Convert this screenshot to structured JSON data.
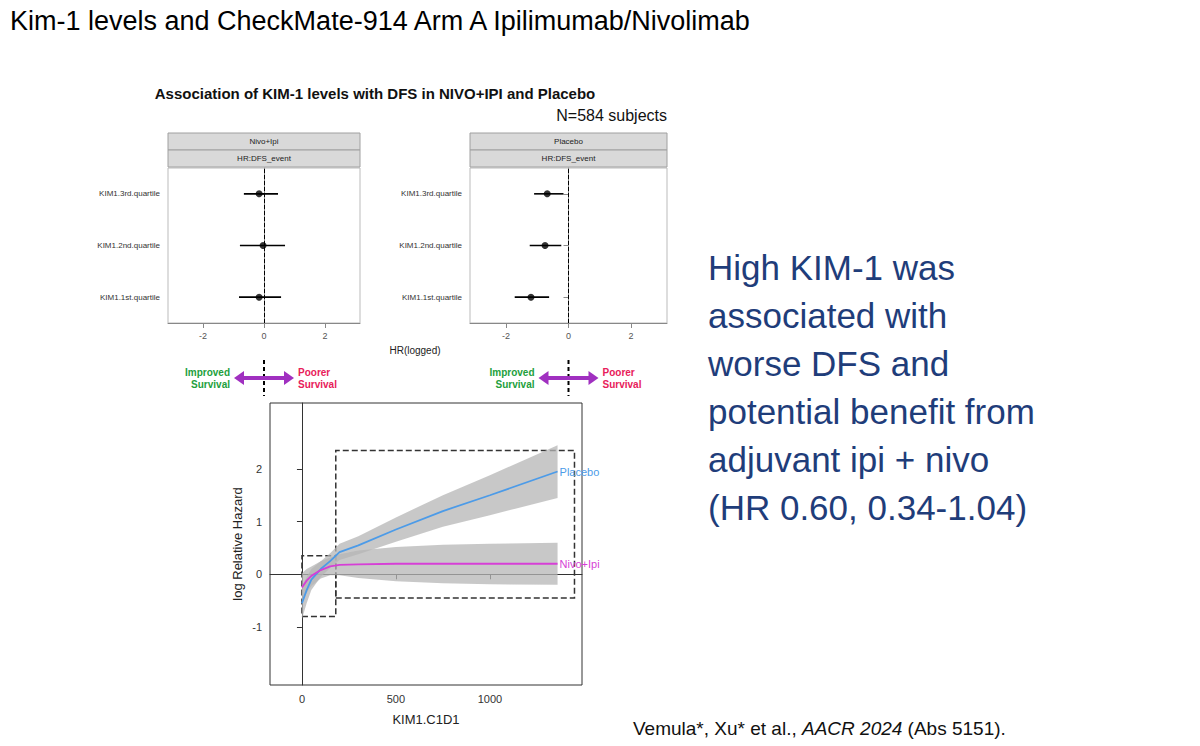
{
  "page": {
    "title": "Kim-1 levels and CheckMate-914 Arm A Ipilimumab/Nivolimab",
    "statement": [
      "High KIM-1 was",
      "associated with",
      "worse DFS and",
      "potential benefit from",
      "adjuvant ipi + nivo",
      "(HR 0.60, 0.34-1.04)"
    ],
    "citation": [
      {
        "text": "Vemula*, Xu* et al., ",
        "italic": false
      },
      {
        "text": "AACR 2024",
        "italic": true
      },
      {
        "text": " (Abs 5151).",
        "italic": false
      }
    ]
  },
  "chart_data": [
    {
      "type": "forest",
      "title": "Association of KIM-1 levels with DFS in NIVO+IPI and Placebo",
      "subtitle": "N=584 subjects",
      "panel_title": "Nivo+Ipi",
      "strip": "HR:DFS_event",
      "xlabel": "HR(logged)",
      "categories": [
        "KIM1.1st.quartile",
        "KIM1.2nd.quartile",
        "KIM1.3rd.quartile"
      ],
      "values": [
        -0.16,
        -0.03,
        -0.16
      ],
      "lower": [
        -0.82,
        -0.79,
        -0.66
      ],
      "upper": [
        0.56,
        0.69,
        0.46
      ],
      "xlim": [
        -3.15,
        3.15
      ],
      "xticks": [
        -2,
        0,
        2
      ],
      "ref_line": 0,
      "color": "#000000",
      "grid": false,
      "annotations": [
        {
          "text": "Improved Survival",
          "color": "#22a03c"
        },
        {
          "text": "Poorer Survival",
          "color": "#e8205a"
        }
      ]
    },
    {
      "type": "forest",
      "panel_title": "Placebo",
      "strip": "HR:DFS_event",
      "categories": [
        "KIM1.1st.quartile",
        "KIM1.2nd.quartile",
        "KIM1.3rd.quartile"
      ],
      "values": [
        -1.2,
        -0.75,
        -0.68
      ],
      "lower": [
        -1.72,
        -1.24,
        -1.1
      ],
      "upper": [
        -0.62,
        -0.23,
        -0.16
      ],
      "xlim": [
        -3.15,
        3.15
      ],
      "xticks": [
        -2,
        0,
        2
      ],
      "ref_line": 0,
      "color": "#000000",
      "grid": false,
      "annotations": [
        {
          "text": "Improved Survival",
          "color": "#22a03c"
        },
        {
          "text": "Poorer Survival",
          "color": "#e8205a"
        }
      ]
    },
    {
      "type": "line",
      "xlabel": "KIM1.C1D1",
      "ylabel": "log Relative Hazard",
      "x": [
        0,
        25,
        50,
        100,
        150,
        200,
        300,
        500,
        750,
        1000,
        1360
      ],
      "series": [
        {
          "name": "Placebo",
          "color": "#4c9be8",
          "values": [
            -0.55,
            -0.3,
            -0.1,
            0.1,
            0.25,
            0.42,
            0.55,
            0.85,
            1.2,
            1.5,
            1.95
          ],
          "lower": [
            -0.85,
            -0.55,
            -0.3,
            -0.05,
            0.12,
            0.27,
            0.38,
            0.62,
            0.9,
            1.12,
            1.45
          ],
          "upper": [
            -0.22,
            -0.05,
            0.1,
            0.25,
            0.4,
            0.58,
            0.72,
            1.08,
            1.5,
            1.88,
            2.45
          ]
        },
        {
          "name": "Nivo+Ipi",
          "color": "#d63fd6",
          "values": [
            -0.25,
            -0.12,
            -0.03,
            0.08,
            0.15,
            0.18,
            0.19,
            0.2,
            0.2,
            0.2,
            0.2
          ],
          "lower": [
            -0.5,
            -0.35,
            -0.22,
            -0.08,
            -0.02,
            -0.02,
            -0.07,
            -0.13,
            -0.17,
            -0.19,
            -0.2
          ],
          "upper": [
            0.02,
            0.1,
            0.15,
            0.25,
            0.32,
            0.38,
            0.45,
            0.52,
            0.56,
            0.58,
            0.6
          ]
        }
      ],
      "boxes": [
        {
          "x": [
            0,
            180
          ],
          "y": [
            -0.8,
            0.35
          ]
        },
        {
          "x": [
            180,
            1450
          ],
          "y": [
            -0.45,
            2.35
          ]
        }
      ],
      "xlim": [
        -170,
        1490
      ],
      "xticks": [
        0,
        500,
        1000
      ],
      "ylim": [
        -2.1,
        3.25
      ],
      "yticks": [
        -1,
        0,
        1,
        2
      ],
      "grid": false
    }
  ]
}
